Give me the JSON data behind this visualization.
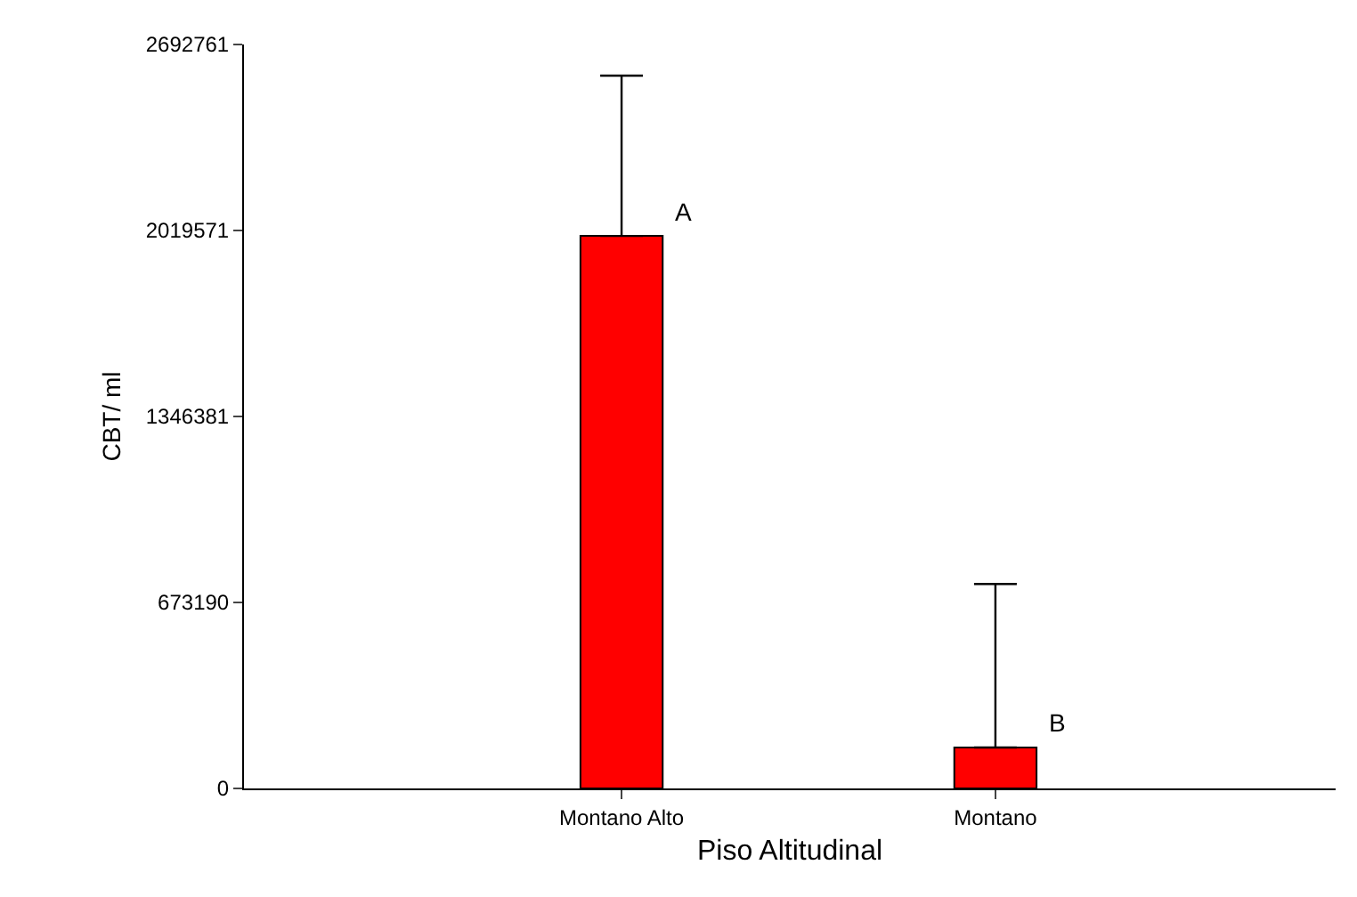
{
  "chart_data": {
    "type": "bar",
    "xlabel": "Piso Altitudinal",
    "ylabel": "CBT/ ml",
    "categories": [
      "Montano Alto",
      "Montano"
    ],
    "values": [
      2000000,
      148000
    ],
    "errors": [
      [
        2000000,
        2580000
      ],
      [
        148000,
        740000
      ]
    ],
    "color": "#ff0000",
    "ylim": [
      0,
      2692761
    ],
    "yticks": [
      0,
      673190,
      1346381,
      2019571,
      2692761
    ],
    "annotations": [
      {
        "text": "A",
        "x": "Montano Alto",
        "y": 2000000
      },
      {
        "text": "B",
        "x": "Montano",
        "y": 148000
      }
    ],
    "legend": false
  }
}
